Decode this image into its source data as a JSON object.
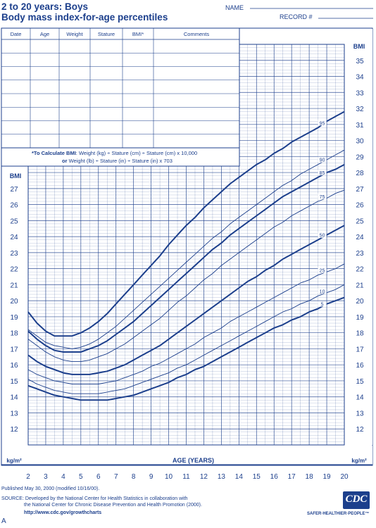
{
  "header": {
    "title_line1": "2 to 20 years: Boys",
    "title_line2": "Body mass index-for-age percentiles",
    "name_label": "NAME",
    "record_label": "RECORD #"
  },
  "table": {
    "columns": [
      "Date",
      "Age",
      "Weight",
      "Stature",
      "BMI*",
      "Comments"
    ],
    "row_count": 8
  },
  "calc_note": {
    "line1_bold": "*To Calculate BMI",
    "line1_rest": ": Weight (kg) ÷ Stature (cm) ÷ Stature (cm) x 10,000",
    "line2_bold": "or",
    "line2_rest": " Weight (lb) ÷ Stature (in) ÷ Stature (in) x 703"
  },
  "footer": {
    "published": "Published May 30, 2000 (modified 10/16/00).",
    "source_line1": "SOURCE: Developed by the National Center for Health Statistics in collaboration with",
    "source_line2": "the National Center for Chronic Disease Prevention and Health Promotion (2000).",
    "url": "http://www.cdc.gov/growthcharts",
    "logo_text": "CDC",
    "tagline": "SAFER·HEALTHIER·PEOPLE™",
    "figure_label": "A"
  },
  "colors": {
    "ink": "#1c3f8c",
    "grid": "#1c3f8c"
  },
  "chart_data": {
    "type": "line",
    "xlabel": "AGE (YEARS)",
    "ylabel": "BMI",
    "y_unit": "kg/m²",
    "xlim": [
      2,
      20
    ],
    "ylim": [
      11,
      36
    ],
    "xticks": [
      2,
      3,
      4,
      5,
      6,
      7,
      8,
      9,
      10,
      11,
      12,
      13,
      14,
      15,
      16,
      17,
      18,
      19,
      20
    ],
    "yticks_left": [
      12,
      13,
      14,
      15,
      16,
      17,
      18,
      19,
      20,
      21,
      22,
      23,
      24,
      25,
      26,
      27
    ],
    "yticks_right": [
      12,
      13,
      14,
      15,
      16,
      17,
      18,
      19,
      20,
      21,
      22,
      23,
      24,
      25,
      26,
      27,
      28,
      29,
      30,
      31,
      32,
      33,
      34,
      35
    ],
    "grid": true,
    "x": [
      2,
      2.5,
      3,
      3.5,
      4,
      4.5,
      5,
      5.5,
      6,
      6.5,
      7,
      7.5,
      8,
      8.5,
      9,
      9.5,
      10,
      10.5,
      11,
      11.5,
      12,
      12.5,
      13,
      13.5,
      14,
      14.5,
      15,
      15.5,
      16,
      16.5,
      17,
      17.5,
      18,
      18.5,
      19,
      19.5,
      20
    ],
    "series": [
      {
        "name": "95",
        "bold": true,
        "values": [
          19.3,
          18.6,
          18.1,
          17.8,
          17.8,
          17.8,
          18.0,
          18.3,
          18.7,
          19.2,
          19.8,
          20.4,
          21.0,
          21.6,
          22.2,
          22.8,
          23.5,
          24.1,
          24.7,
          25.2,
          25.8,
          26.3,
          26.8,
          27.3,
          27.7,
          28.1,
          28.5,
          28.8,
          29.2,
          29.5,
          29.9,
          30.2,
          30.5,
          30.8,
          31.2,
          31.5,
          31.8
        ]
      },
      {
        "name": "90",
        "bold": false,
        "values": [
          18.2,
          17.8,
          17.4,
          17.2,
          17.1,
          17.0,
          17.1,
          17.3,
          17.6,
          18.0,
          18.4,
          18.9,
          19.4,
          19.9,
          20.4,
          20.9,
          21.4,
          21.9,
          22.4,
          22.9,
          23.4,
          23.9,
          24.3,
          24.8,
          25.2,
          25.6,
          26.0,
          26.4,
          26.8,
          27.2,
          27.5,
          27.9,
          28.2,
          28.5,
          28.8,
          29.1,
          29.4
        ]
      },
      {
        "name": "85",
        "bold": true,
        "values": [
          18.1,
          17.6,
          17.2,
          16.9,
          16.8,
          16.8,
          16.8,
          17.0,
          17.2,
          17.5,
          17.9,
          18.3,
          18.7,
          19.2,
          19.7,
          20.2,
          20.7,
          21.2,
          21.7,
          22.2,
          22.7,
          23.2,
          23.6,
          24.1,
          24.5,
          24.9,
          25.3,
          25.7,
          26.1,
          26.5,
          26.8,
          27.1,
          27.4,
          27.7,
          28.0,
          28.2,
          28.5
        ]
      },
      {
        "name": "75",
        "bold": false,
        "values": [
          17.6,
          17.2,
          16.8,
          16.5,
          16.3,
          16.2,
          16.2,
          16.3,
          16.5,
          16.7,
          17.0,
          17.3,
          17.7,
          18.1,
          18.5,
          18.9,
          19.4,
          19.9,
          20.3,
          20.8,
          21.3,
          21.7,
          22.2,
          22.6,
          23.0,
          23.4,
          23.8,
          24.2,
          24.6,
          24.9,
          25.3,
          25.6,
          25.9,
          26.2,
          26.4,
          26.7,
          26.9
        ]
      },
      {
        "name": "50",
        "bold": true,
        "values": [
          16.6,
          16.2,
          15.9,
          15.7,
          15.5,
          15.4,
          15.4,
          15.4,
          15.5,
          15.6,
          15.8,
          16.0,
          16.3,
          16.6,
          16.9,
          17.2,
          17.6,
          18.0,
          18.4,
          18.8,
          19.2,
          19.6,
          20.0,
          20.4,
          20.8,
          21.2,
          21.5,
          21.9,
          22.2,
          22.6,
          22.9,
          23.2,
          23.5,
          23.8,
          24.1,
          24.4,
          24.7
        ]
      },
      {
        "name": "25",
        "bold": false,
        "values": [
          15.7,
          15.4,
          15.2,
          15.0,
          14.9,
          14.8,
          14.8,
          14.8,
          14.8,
          14.9,
          15.0,
          15.2,
          15.4,
          15.6,
          15.9,
          16.1,
          16.4,
          16.7,
          17.0,
          17.3,
          17.7,
          18.0,
          18.3,
          18.7,
          19.0,
          19.3,
          19.6,
          19.9,
          20.2,
          20.5,
          20.8,
          21.1,
          21.3,
          21.6,
          21.8,
          22.0,
          22.3
        ]
      },
      {
        "name": "10",
        "bold": false,
        "values": [
          15.1,
          14.8,
          14.6,
          14.4,
          14.3,
          14.2,
          14.2,
          14.2,
          14.2,
          14.3,
          14.4,
          14.5,
          14.7,
          14.9,
          15.1,
          15.3,
          15.5,
          15.8,
          16.0,
          16.3,
          16.6,
          16.9,
          17.2,
          17.5,
          17.8,
          18.1,
          18.4,
          18.7,
          19.0,
          19.3,
          19.5,
          19.8,
          20.0,
          20.3,
          20.5,
          20.7,
          21.0
        ]
      },
      {
        "name": "5",
        "bold": true,
        "values": [
          14.7,
          14.5,
          14.3,
          14.1,
          14.0,
          13.9,
          13.8,
          13.8,
          13.8,
          13.8,
          13.9,
          14.0,
          14.1,
          14.3,
          14.5,
          14.7,
          14.9,
          15.2,
          15.4,
          15.7,
          15.9,
          16.2,
          16.5,
          16.8,
          17.1,
          17.4,
          17.7,
          18.0,
          18.3,
          18.5,
          18.8,
          19.0,
          19.3,
          19.5,
          19.8,
          20.0,
          20.2
        ]
      }
    ]
  }
}
